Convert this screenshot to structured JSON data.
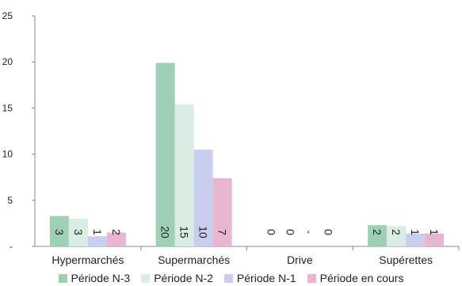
{
  "chart_data": {
    "type": "bar",
    "categories": [
      "Hypermarchés",
      "Supermarchés",
      "Drive",
      "Supérettes"
    ],
    "y_ticks": [
      "25",
      "20",
      "15",
      "10",
      "5",
      "-"
    ],
    "ylim": [
      0,
      25
    ],
    "series": [
      {
        "name": "Période N-3",
        "color": "#9fcfb5",
        "values": [
          3.3,
          19.9,
          0,
          2.3
        ],
        "labels": [
          "3",
          "20",
          "0",
          "2"
        ]
      },
      {
        "name": "Période N-2",
        "color": "#d9ede4",
        "values": [
          3.0,
          15.4,
          0,
          2.2
        ],
        "labels": [
          "3",
          "15",
          "0",
          "2"
        ]
      },
      {
        "name": "Période N-1",
        "color": "#c9cdee",
        "values": [
          1.1,
          10.5,
          0,
          1.4
        ],
        "labels": [
          "1",
          "10",
          "-",
          "1"
        ]
      },
      {
        "name": "Période en cours",
        "color": "#e8b6d0",
        "values": [
          1.5,
          7.4,
          0,
          1.4
        ],
        "labels": [
          "2",
          "7",
          "0",
          "1"
        ]
      }
    ],
    "grid": false,
    "legend_position": "bottom"
  }
}
